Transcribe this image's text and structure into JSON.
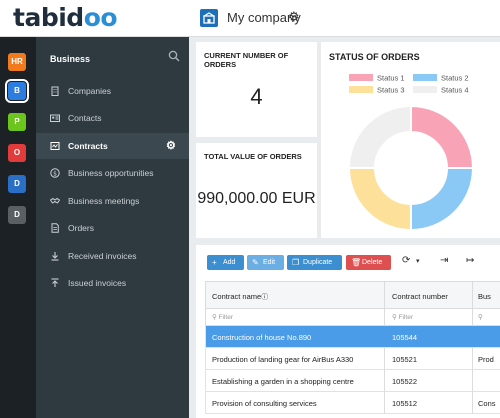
{
  "header": {
    "logo_main": "tabid",
    "logo_accent": "oo",
    "company": "My company"
  },
  "apps": [
    {
      "label": "HR",
      "color": "#f07a1c"
    },
    {
      "label": "B",
      "color": "#2d7de0"
    },
    {
      "label": "P",
      "color": "#6cc51d"
    },
    {
      "label": "O",
      "color": "#e23b3b"
    },
    {
      "label": "D",
      "color": "#2a6fc5"
    },
    {
      "label": "D",
      "color": "#5a5f63"
    }
  ],
  "sidebar": {
    "title": "Business",
    "items": [
      {
        "label": "Companies",
        "icon": "building-icon"
      },
      {
        "label": "Contacts",
        "icon": "contact-card-icon"
      },
      {
        "label": "Contracts",
        "icon": "contract-icon",
        "active": true
      },
      {
        "label": "Business opportunities",
        "icon": "dollar-icon"
      },
      {
        "label": "Business meetings",
        "icon": "handshake-icon"
      },
      {
        "label": "Orders",
        "icon": "document-icon"
      },
      {
        "label": "Received invoices",
        "icon": "invoice-in-icon"
      },
      {
        "label": "Issued invoices",
        "icon": "invoice-out-icon"
      }
    ]
  },
  "kpis": {
    "orders_count_title": "CURRENT NUMBER OF ORDERS",
    "orders_count_value": "4",
    "orders_total_title": "TOTAL VALUE OF ORDERS",
    "orders_total_value": "990,000.00 EUR"
  },
  "chart_data": {
    "type": "pie",
    "title": "STATUS OF ORDERS",
    "donut": true,
    "legend_position": "top",
    "series": [
      {
        "name": "Status 1",
        "value": 1,
        "color": "#f9a3b7"
      },
      {
        "name": "Status 2",
        "value": 1,
        "color": "#8ac8f5"
      },
      {
        "name": "Status 3",
        "value": 1,
        "color": "#fde19a"
      },
      {
        "name": "Status 4",
        "value": 1,
        "color": "#efefef"
      }
    ]
  },
  "toolbar": {
    "add": "Add",
    "edit": "Edit",
    "duplicate": "Duplicate",
    "delete": "Delete",
    "add_color": "#3b8fd0",
    "edit_color": "#6aaee3",
    "duplicate_color": "#3b8fd0",
    "delete_color": "#de5050"
  },
  "table": {
    "columns": [
      "Contract name",
      "Contract number",
      "Bus"
    ],
    "filter_placeholder": "Filter",
    "rows": [
      {
        "name": "Construction of house No.890",
        "number": "105544",
        "bus": "",
        "selected": true
      },
      {
        "name": "Production of landing gear for AirBus A330",
        "number": "105521",
        "bus": "Prod"
      },
      {
        "name": "Establishing a garden in a shopping centre",
        "number": "105522",
        "bus": ""
      },
      {
        "name": "Provision of consulting services",
        "number": "105512",
        "bus": "Cons"
      }
    ]
  }
}
